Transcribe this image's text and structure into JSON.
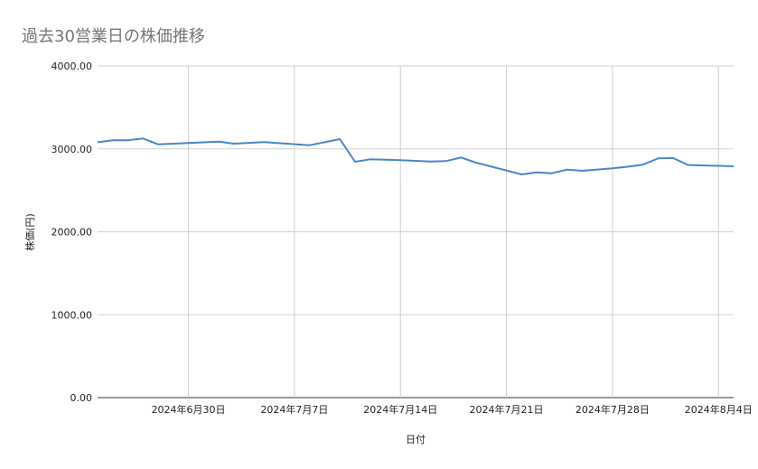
{
  "chart_data": {
    "type": "line",
    "title": "過去30営業日の株価推移",
    "xlabel": "日付",
    "ylabel": "株価(円)",
    "ylim": [
      0,
      4000
    ],
    "xlim": [
      "2024-06-24",
      "2024-08-05"
    ],
    "yticks": [
      "0.00",
      "1000.00",
      "2000.00",
      "3000.00",
      "4000.00"
    ],
    "xticks": [
      {
        "date": "2024-06-30",
        "label": "2024年6月30日"
      },
      {
        "date": "2024-07-07",
        "label": "2024年7月7日"
      },
      {
        "date": "2024-07-14",
        "label": "2024年7月14日"
      },
      {
        "date": "2024-07-21",
        "label": "2024年7月21日"
      },
      {
        "date": "2024-07-28",
        "label": "2024年7月28日"
      },
      {
        "date": "2024-08-04",
        "label": "2024年8月4日"
      }
    ],
    "grid": true,
    "line_color": "#4a86c8",
    "points": [
      [
        "2024-06-24",
        3080
      ],
      [
        "2024-06-25",
        3103
      ],
      [
        "2024-06-26",
        3103
      ],
      [
        "2024-06-27",
        3125
      ],
      [
        "2024-06-28",
        3055
      ],
      [
        "2024-07-02",
        3088
      ],
      [
        "2024-07-03",
        3063
      ],
      [
        "2024-07-05",
        3081
      ],
      [
        "2024-07-08",
        3044
      ],
      [
        "2024-07-10",
        3117
      ],
      [
        "2024-07-11",
        2845
      ],
      [
        "2024-07-12",
        2874
      ],
      [
        "2024-07-14",
        2863
      ],
      [
        "2024-07-16",
        2848
      ],
      [
        "2024-07-17",
        2852
      ],
      [
        "2024-07-18",
        2896
      ],
      [
        "2024-07-19",
        2834
      ],
      [
        "2024-07-22",
        2692
      ],
      [
        "2024-07-23",
        2717
      ],
      [
        "2024-07-24",
        2706
      ],
      [
        "2024-07-25",
        2750
      ],
      [
        "2024-07-26",
        2736
      ],
      [
        "2024-07-28",
        2765
      ],
      [
        "2024-07-29",
        2785
      ],
      [
        "2024-07-30",
        2809
      ],
      [
        "2024-07-31",
        2885
      ],
      [
        "2024-08-01",
        2889
      ],
      [
        "2024-08-02",
        2805
      ],
      [
        "2024-08-05",
        2790
      ]
    ]
  }
}
